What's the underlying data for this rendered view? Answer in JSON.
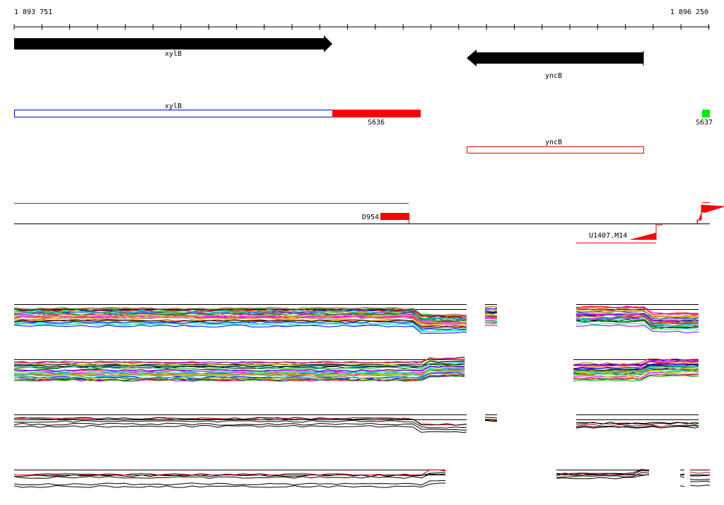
{
  "ruler": {
    "start": "1 893 751",
    "end": "1 896 250"
  },
  "genes": [
    {
      "label": "xylB"
    },
    {
      "label": "yncB"
    }
  ],
  "features": [
    {
      "label": "xylB"
    },
    {
      "label": "S636"
    },
    {
      "label": "S637"
    },
    {
      "label": "yncB"
    }
  ],
  "probes": [
    {
      "label": "D954"
    },
    {
      "label": "U1407.M14"
    }
  ]
}
